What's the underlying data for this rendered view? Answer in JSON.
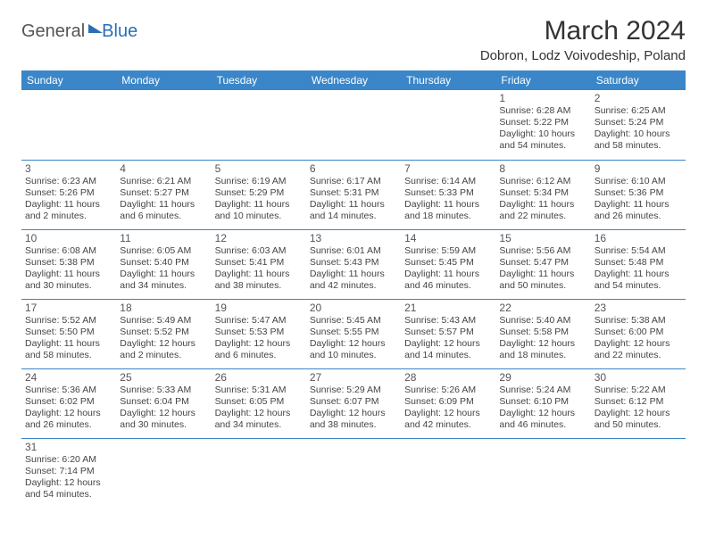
{
  "logo": {
    "part1": "General",
    "part2": "Blue"
  },
  "title": "March 2024",
  "location": "Dobron, Lodz Voivodeship, Poland",
  "colors": {
    "header_bg": "#3a86c8",
    "header_text": "#ffffff",
    "border": "#3a86c8",
    "text": "#444444",
    "logo_blue": "#2a6fb5"
  },
  "day_headers": [
    "Sunday",
    "Monday",
    "Tuesday",
    "Wednesday",
    "Thursday",
    "Friday",
    "Saturday"
  ],
  "weeks": [
    [
      null,
      null,
      null,
      null,
      null,
      {
        "d": "1",
        "sr": "Sunrise: 6:28 AM",
        "ss": "Sunset: 5:22 PM",
        "dl1": "Daylight: 10 hours",
        "dl2": "and 54 minutes."
      },
      {
        "d": "2",
        "sr": "Sunrise: 6:25 AM",
        "ss": "Sunset: 5:24 PM",
        "dl1": "Daylight: 10 hours",
        "dl2": "and 58 minutes."
      }
    ],
    [
      {
        "d": "3",
        "sr": "Sunrise: 6:23 AM",
        "ss": "Sunset: 5:26 PM",
        "dl1": "Daylight: 11 hours",
        "dl2": "and 2 minutes."
      },
      {
        "d": "4",
        "sr": "Sunrise: 6:21 AM",
        "ss": "Sunset: 5:27 PM",
        "dl1": "Daylight: 11 hours",
        "dl2": "and 6 minutes."
      },
      {
        "d": "5",
        "sr": "Sunrise: 6:19 AM",
        "ss": "Sunset: 5:29 PM",
        "dl1": "Daylight: 11 hours",
        "dl2": "and 10 minutes."
      },
      {
        "d": "6",
        "sr": "Sunrise: 6:17 AM",
        "ss": "Sunset: 5:31 PM",
        "dl1": "Daylight: 11 hours",
        "dl2": "and 14 minutes."
      },
      {
        "d": "7",
        "sr": "Sunrise: 6:14 AM",
        "ss": "Sunset: 5:33 PM",
        "dl1": "Daylight: 11 hours",
        "dl2": "and 18 minutes."
      },
      {
        "d": "8",
        "sr": "Sunrise: 6:12 AM",
        "ss": "Sunset: 5:34 PM",
        "dl1": "Daylight: 11 hours",
        "dl2": "and 22 minutes."
      },
      {
        "d": "9",
        "sr": "Sunrise: 6:10 AM",
        "ss": "Sunset: 5:36 PM",
        "dl1": "Daylight: 11 hours",
        "dl2": "and 26 minutes."
      }
    ],
    [
      {
        "d": "10",
        "sr": "Sunrise: 6:08 AM",
        "ss": "Sunset: 5:38 PM",
        "dl1": "Daylight: 11 hours",
        "dl2": "and 30 minutes."
      },
      {
        "d": "11",
        "sr": "Sunrise: 6:05 AM",
        "ss": "Sunset: 5:40 PM",
        "dl1": "Daylight: 11 hours",
        "dl2": "and 34 minutes."
      },
      {
        "d": "12",
        "sr": "Sunrise: 6:03 AM",
        "ss": "Sunset: 5:41 PM",
        "dl1": "Daylight: 11 hours",
        "dl2": "and 38 minutes."
      },
      {
        "d": "13",
        "sr": "Sunrise: 6:01 AM",
        "ss": "Sunset: 5:43 PM",
        "dl1": "Daylight: 11 hours",
        "dl2": "and 42 minutes."
      },
      {
        "d": "14",
        "sr": "Sunrise: 5:59 AM",
        "ss": "Sunset: 5:45 PM",
        "dl1": "Daylight: 11 hours",
        "dl2": "and 46 minutes."
      },
      {
        "d": "15",
        "sr": "Sunrise: 5:56 AM",
        "ss": "Sunset: 5:47 PM",
        "dl1": "Daylight: 11 hours",
        "dl2": "and 50 minutes."
      },
      {
        "d": "16",
        "sr": "Sunrise: 5:54 AM",
        "ss": "Sunset: 5:48 PM",
        "dl1": "Daylight: 11 hours",
        "dl2": "and 54 minutes."
      }
    ],
    [
      {
        "d": "17",
        "sr": "Sunrise: 5:52 AM",
        "ss": "Sunset: 5:50 PM",
        "dl1": "Daylight: 11 hours",
        "dl2": "and 58 minutes."
      },
      {
        "d": "18",
        "sr": "Sunrise: 5:49 AM",
        "ss": "Sunset: 5:52 PM",
        "dl1": "Daylight: 12 hours",
        "dl2": "and 2 minutes."
      },
      {
        "d": "19",
        "sr": "Sunrise: 5:47 AM",
        "ss": "Sunset: 5:53 PM",
        "dl1": "Daylight: 12 hours",
        "dl2": "and 6 minutes."
      },
      {
        "d": "20",
        "sr": "Sunrise: 5:45 AM",
        "ss": "Sunset: 5:55 PM",
        "dl1": "Daylight: 12 hours",
        "dl2": "and 10 minutes."
      },
      {
        "d": "21",
        "sr": "Sunrise: 5:43 AM",
        "ss": "Sunset: 5:57 PM",
        "dl1": "Daylight: 12 hours",
        "dl2": "and 14 minutes."
      },
      {
        "d": "22",
        "sr": "Sunrise: 5:40 AM",
        "ss": "Sunset: 5:58 PM",
        "dl1": "Daylight: 12 hours",
        "dl2": "and 18 minutes."
      },
      {
        "d": "23",
        "sr": "Sunrise: 5:38 AM",
        "ss": "Sunset: 6:00 PM",
        "dl1": "Daylight: 12 hours",
        "dl2": "and 22 minutes."
      }
    ],
    [
      {
        "d": "24",
        "sr": "Sunrise: 5:36 AM",
        "ss": "Sunset: 6:02 PM",
        "dl1": "Daylight: 12 hours",
        "dl2": "and 26 minutes."
      },
      {
        "d": "25",
        "sr": "Sunrise: 5:33 AM",
        "ss": "Sunset: 6:04 PM",
        "dl1": "Daylight: 12 hours",
        "dl2": "and 30 minutes."
      },
      {
        "d": "26",
        "sr": "Sunrise: 5:31 AM",
        "ss": "Sunset: 6:05 PM",
        "dl1": "Daylight: 12 hours",
        "dl2": "and 34 minutes."
      },
      {
        "d": "27",
        "sr": "Sunrise: 5:29 AM",
        "ss": "Sunset: 6:07 PM",
        "dl1": "Daylight: 12 hours",
        "dl2": "and 38 minutes."
      },
      {
        "d": "28",
        "sr": "Sunrise: 5:26 AM",
        "ss": "Sunset: 6:09 PM",
        "dl1": "Daylight: 12 hours",
        "dl2": "and 42 minutes."
      },
      {
        "d": "29",
        "sr": "Sunrise: 5:24 AM",
        "ss": "Sunset: 6:10 PM",
        "dl1": "Daylight: 12 hours",
        "dl2": "and 46 minutes."
      },
      {
        "d": "30",
        "sr": "Sunrise: 5:22 AM",
        "ss": "Sunset: 6:12 PM",
        "dl1": "Daylight: 12 hours",
        "dl2": "and 50 minutes."
      }
    ],
    [
      {
        "d": "31",
        "sr": "Sunrise: 6:20 AM",
        "ss": "Sunset: 7:14 PM",
        "dl1": "Daylight: 12 hours",
        "dl2": "and 54 minutes."
      },
      null,
      null,
      null,
      null,
      null,
      null
    ]
  ]
}
